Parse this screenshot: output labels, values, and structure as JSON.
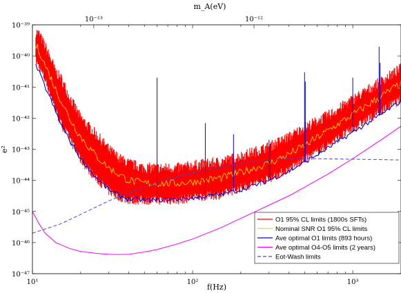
{
  "chart_data": {
    "type": "line",
    "xlabel": "f(Hz)",
    "ylabel": "e²",
    "top_xlabel": "m_A(eV)",
    "xscale": "log",
    "yscale": "log",
    "xlim": [
      10,
      2000
    ],
    "ylim": [
      1e-47,
      1e-39
    ],
    "top_xlim_eV": [
      4.14e-14,
      8.27e-12
    ],
    "x_ticks": [
      {
        "value": 10,
        "label": "10¹"
      },
      {
        "value": 100,
        "label": "10²"
      },
      {
        "value": 1000,
        "label": "10³"
      }
    ],
    "y_ticks": [
      {
        "value": 1e-39,
        "label": "10⁻³⁹"
      },
      {
        "value": 1e-40,
        "label": "10⁻⁴⁰"
      },
      {
        "value": 1e-41,
        "label": "10⁻⁴¹"
      },
      {
        "value": 1e-42,
        "label": "10⁻⁴²"
      },
      {
        "value": 1e-43,
        "label": "10⁻⁴³"
      },
      {
        "value": 1e-44,
        "label": "10⁻⁴⁴"
      },
      {
        "value": 1e-45,
        "label": "10⁻⁴⁵"
      },
      {
        "value": 1e-46,
        "label": "10⁻⁴⁶"
      },
      {
        "value": 1e-47,
        "label": "10⁻⁴⁷"
      }
    ],
    "top_ticks": [
      {
        "value_eV": 1e-13,
        "label": "10⁻¹³"
      },
      {
        "value_eV": 1e-12,
        "label": "10⁻¹²"
      }
    ],
    "legend_position": "bottom-right",
    "grid": false,
    "series": [
      {
        "name": "O1 95% CL limits (1800s SFTs)",
        "color": "#ff0000",
        "style": "band",
        "x": [
          10.5,
          11,
          12,
          13,
          14,
          15,
          17,
          20,
          25,
          30,
          35,
          40,
          50,
          60,
          80,
          100,
          150,
          200,
          300,
          400,
          500,
          700,
          1000,
          1500,
          2000
        ],
        "upper": [
          6e-40,
          5e-40,
          2e-40,
          8e-41,
          3e-41,
          2e-41,
          5e-42,
          1e-42,
          3e-43,
          1e-43,
          5e-44,
          3.5e-44,
          2.5e-44,
          2.5e-44,
          2.5e-44,
          3e-44,
          4e-44,
          6e-44,
          1.2e-43,
          2.5e-43,
          5e-43,
          1.2e-42,
          4e-42,
          1.5e-41,
          4e-41
        ],
        "lower": [
          6e-41,
          4e-41,
          1.5e-41,
          5e-42,
          1.5e-42,
          6e-43,
          2e-43,
          4e-44,
          1e-44,
          4e-45,
          2.5e-45,
          2e-45,
          2e-45,
          2e-45,
          2e-45,
          2.5e-45,
          3e-45,
          5e-45,
          1e-44,
          2e-44,
          4e-44,
          1.2e-43,
          4e-43,
          1.5e-42,
          3.5e-42
        ]
      },
      {
        "name": "Nominal SNR O1 95% CL limits",
        "color": "#ffd700",
        "x": [
          10.5,
          11,
          12,
          13,
          14,
          15,
          17,
          20,
          25,
          30,
          35,
          40,
          50,
          60,
          80,
          100,
          150,
          200,
          300,
          400,
          500,
          700,
          1000,
          1500,
          2000
        ],
        "y": [
          2e-40,
          1.5e-40,
          5e-41,
          2e-41,
          8e-42,
          4e-42,
          1e-42,
          2.5e-43,
          6e-44,
          2.5e-44,
          1.5e-44,
          1e-44,
          8e-45,
          8e-45,
          8e-45,
          9e-45,
          1.2e-44,
          1.8e-44,
          3.5e-44,
          7e-44,
          1.3e-43,
          4e-43,
          1.3e-42,
          5e-42,
          1.3e-41
        ]
      },
      {
        "name": "Ave optimal O1 limits (893 hours)",
        "color": "#0000dd",
        "x": [
          10.5,
          11,
          12,
          13,
          14,
          15,
          17,
          20,
          25,
          30,
          35,
          40,
          50,
          60,
          80,
          100,
          150,
          200,
          300,
          400,
          500,
          700,
          1000,
          1500,
          2000
        ],
        "y": [
          5e-41,
          3e-41,
          1e-41,
          4e-42,
          1.5e-42,
          7e-43,
          2e-43,
          5e-44,
          1.2e-44,
          5e-45,
          3.2e-45,
          2.5e-45,
          2.3e-45,
          2.3e-45,
          2.5e-45,
          2.7e-45,
          3.5e-45,
          5e-45,
          1e-44,
          2e-44,
          3.8e-44,
          1.1e-43,
          3.5e-43,
          1.3e-42,
          3.5e-42
        ]
      },
      {
        "name": "Ave optimal O4-O5 limits (2 years)",
        "color": "#ff00ff",
        "x": [
          10,
          11,
          12,
          14,
          17,
          20,
          25,
          30,
          35,
          40,
          50,
          60,
          80,
          100,
          150,
          200,
          300,
          400,
          500,
          700,
          1000,
          1500,
          2000
        ],
        "y": [
          1e-45,
          4e-46,
          2e-46,
          1e-46,
          6.5e-47,
          5.2e-47,
          4.5e-47,
          4.2e-47,
          4.1e-47,
          4.2e-47,
          5e-47,
          6e-47,
          9e-47,
          1.3e-46,
          3e-46,
          6e-46,
          1.6e-45,
          3.2e-45,
          6e-45,
          1.6e-44,
          5e-44,
          2e-43,
          5.5e-43
        ]
      },
      {
        "name": "Eot-Wash limits",
        "color": "#4444dd",
        "style": "dashed",
        "x": [
          10,
          15,
          20,
          30,
          40,
          60,
          80,
          100,
          150,
          200,
          300,
          400,
          600,
          1000,
          2000
        ],
        "y": [
          2e-46,
          4e-46,
          8e-46,
          2.2e-45,
          4e-45,
          8e-45,
          1.3e-44,
          1.7e-44,
          2.7e-44,
          3.5e-44,
          4.5e-44,
          5e-44,
          5e-44,
          4.8e-44,
          4.5e-44
        ]
      }
    ],
    "spikes": [
      {
        "x": 60,
        "y": 2e-41
      },
      {
        "x": 120,
        "y": 7e-43
      },
      {
        "x": 180,
        "y": 3e-43
      },
      {
        "x": 300,
        "y": 2e-43
      },
      {
        "x": 305,
        "y": 1.5e-43
      },
      {
        "x": 500,
        "y": 3e-41
      },
      {
        "x": 505,
        "y": 1.5e-41
      },
      {
        "x": 1000,
        "y": 2e-41
      },
      {
        "x": 1460,
        "y": 2e-40
      },
      {
        "x": 1480,
        "y": 6e-41
      }
    ]
  }
}
